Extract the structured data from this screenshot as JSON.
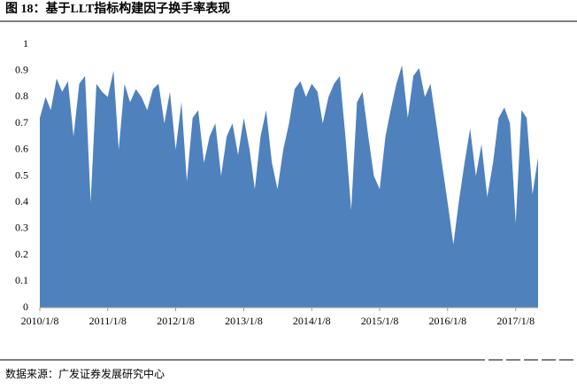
{
  "title": "图 18：基于LLT指标构建因子换手率表现",
  "source": "数据来源：广发证券发展研究中心",
  "chart_data": {
    "type": "area",
    "color": "#4f81bd",
    "x": [
      "2010/1/8",
      "2010/2/8",
      "2010/3/8",
      "2010/4/8",
      "2010/5/8",
      "2010/6/8",
      "2010/7/8",
      "2010/8/8",
      "2010/9/8",
      "2010/10/8",
      "2010/11/8",
      "2010/12/8",
      "2011/1/8",
      "2011/2/8",
      "2011/3/8",
      "2011/4/8",
      "2011/5/8",
      "2011/6/8",
      "2011/7/8",
      "2011/8/8",
      "2011/9/8",
      "2011/10/8",
      "2011/11/8",
      "2011/12/8",
      "2012/1/8",
      "2012/2/8",
      "2012/3/8",
      "2012/4/8",
      "2012/5/8",
      "2012/6/8",
      "2012/7/8",
      "2012/8/8",
      "2012/9/8",
      "2012/10/8",
      "2012/11/8",
      "2012/12/8",
      "2013/1/8",
      "2013/2/8",
      "2013/3/8",
      "2013/4/8",
      "2013/5/8",
      "2013/6/8",
      "2013/7/8",
      "2013/8/8",
      "2013/9/8",
      "2013/10/8",
      "2013/11/8",
      "2013/12/8",
      "2014/1/8",
      "2014/2/8",
      "2014/3/8",
      "2014/4/8",
      "2014/5/8",
      "2014/6/8",
      "2014/7/8",
      "2014/8/8",
      "2014/9/8",
      "2014/10/8",
      "2014/11/8",
      "2014/12/8",
      "2015/1/8",
      "2015/2/8",
      "2015/3/8",
      "2015/4/8",
      "2015/5/8",
      "2015/6/8",
      "2015/7/8",
      "2015/8/8",
      "2015/9/8",
      "2015/10/8",
      "2015/11/8",
      "2015/12/8",
      "2016/1/8",
      "2016/2/8",
      "2016/3/8",
      "2016/4/8",
      "2016/5/8",
      "2016/6/8",
      "2016/7/8",
      "2016/8/8",
      "2016/9/8",
      "2016/10/8",
      "2016/11/8",
      "2016/12/8",
      "2017/1/8",
      "2017/2/8",
      "2017/3/8",
      "2017/4/8",
      "2017/5/8"
    ],
    "values": [
      0.72,
      0.8,
      0.75,
      0.87,
      0.82,
      0.86,
      0.65,
      0.85,
      0.88,
      0.4,
      0.85,
      0.82,
      0.8,
      0.9,
      0.6,
      0.85,
      0.78,
      0.83,
      0.8,
      0.75,
      0.83,
      0.85,
      0.7,
      0.82,
      0.6,
      0.78,
      0.48,
      0.72,
      0.75,
      0.55,
      0.65,
      0.7,
      0.5,
      0.65,
      0.7,
      0.58,
      0.72,
      0.6,
      0.45,
      0.65,
      0.75,
      0.55,
      0.45,
      0.6,
      0.7,
      0.83,
      0.86,
      0.8,
      0.85,
      0.82,
      0.7,
      0.8,
      0.85,
      0.88,
      0.65,
      0.37,
      0.78,
      0.82,
      0.65,
      0.5,
      0.45,
      0.65,
      0.75,
      0.85,
      0.92,
      0.72,
      0.88,
      0.91,
      0.8,
      0.85,
      0.7,
      0.55,
      0.4,
      0.24,
      0.4,
      0.55,
      0.68,
      0.5,
      0.62,
      0.42,
      0.55,
      0.72,
      0.76,
      0.7,
      0.32,
      0.75,
      0.72,
      0.43,
      0.57
    ],
    "xlim": [
      "2010/1/8",
      "2017/5/8"
    ],
    "xticks": [
      "2010/1/8",
      "2011/1/8",
      "2012/1/8",
      "2013/1/8",
      "2014/1/8",
      "2015/1/8",
      "2016/1/8",
      "2017/1/8"
    ],
    "ylim": [
      0,
      1
    ],
    "yticks": [
      0,
      0.1,
      0.2,
      0.3,
      0.4,
      0.5,
      0.6,
      0.7,
      0.8,
      0.9,
      1
    ]
  }
}
